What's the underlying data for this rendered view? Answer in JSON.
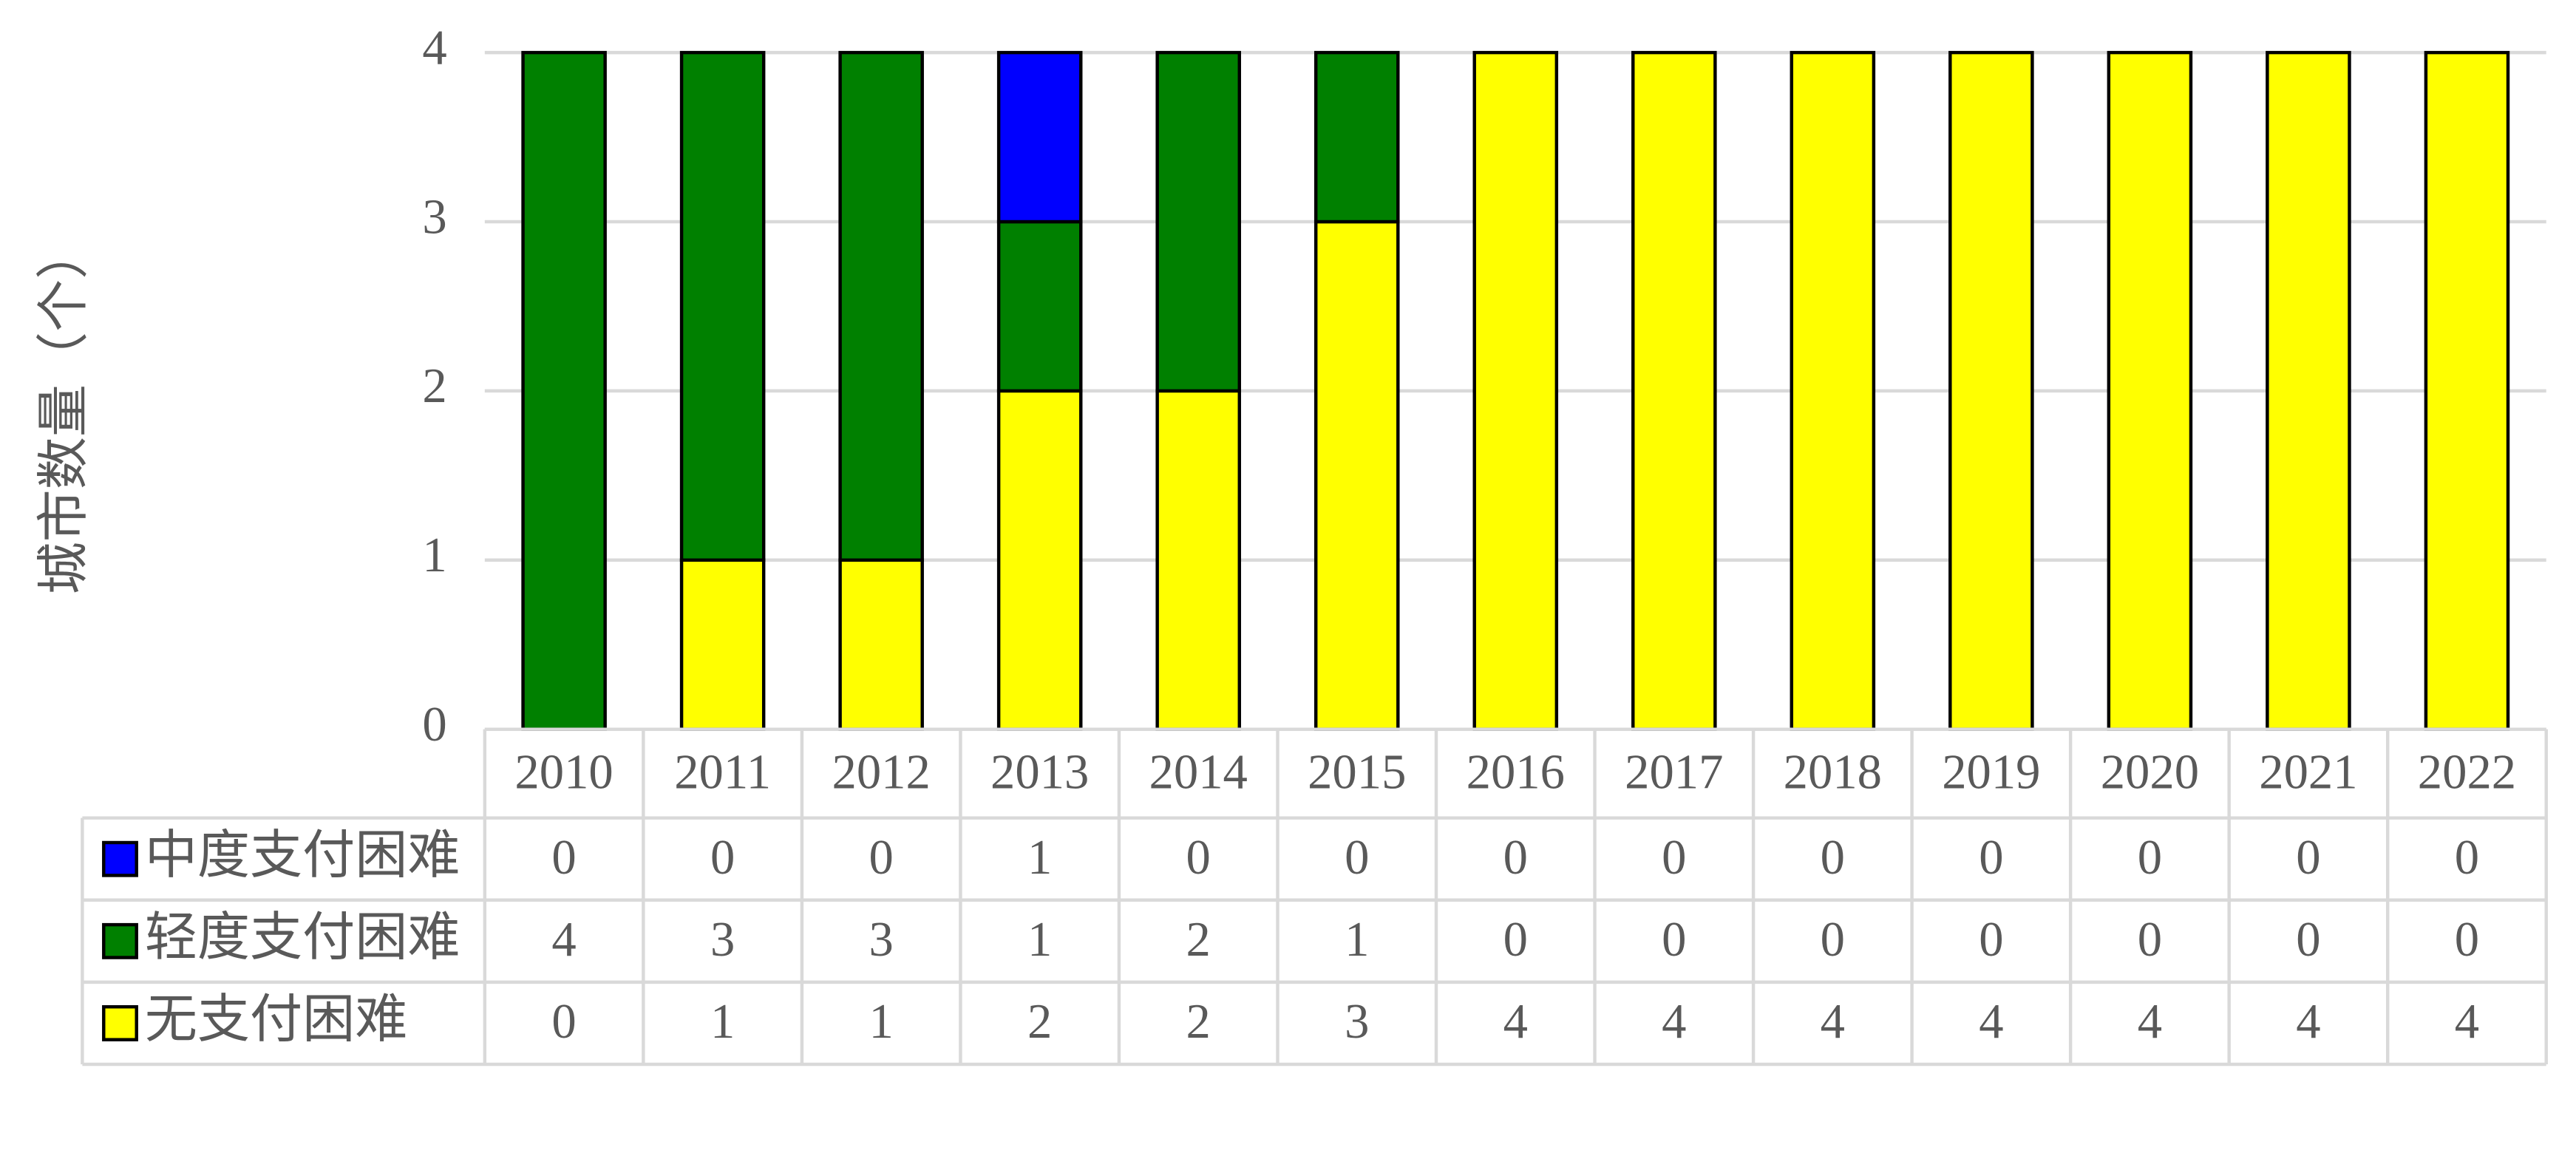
{
  "chart_data": {
    "type": "stacked-bar-table",
    "y_label": "城市数量（个）",
    "categories": [
      "2010",
      "2011",
      "2012",
      "2013",
      "2014",
      "2015",
      "2016",
      "2017",
      "2018",
      "2019",
      "2020",
      "2021",
      "2022"
    ],
    "series": [
      {
        "name": "中度支付困难",
        "color": "#0000ff",
        "values": [
          0,
          0,
          0,
          1,
          0,
          0,
          0,
          0,
          0,
          0,
          0,
          0,
          0
        ]
      },
      {
        "name": "轻度支付困难",
        "color": "#008000",
        "values": [
          4,
          3,
          3,
          1,
          2,
          1,
          0,
          0,
          0,
          0,
          0,
          0,
          0
        ]
      },
      {
        "name": "无支付困难",
        "color": "#ffff00",
        "values": [
          0,
          1,
          1,
          2,
          2,
          3,
          4,
          4,
          4,
          4,
          4,
          4,
          4
        ]
      }
    ],
    "ylim": [
      0,
      4
    ],
    "yticks": [
      0,
      1,
      2,
      3,
      4
    ],
    "grid": true
  }
}
